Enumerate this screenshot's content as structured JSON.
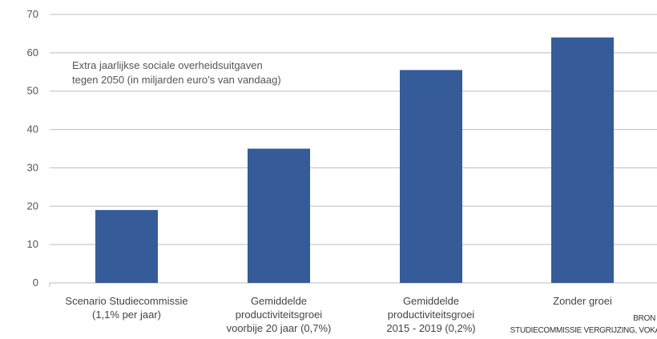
{
  "chart_data": {
    "type": "bar",
    "categories": [
      [
        "Scenario Studiecommissie",
        "(1,1% per jaar)"
      ],
      [
        "Gemiddelde",
        "productiviteitsgroei",
        "voorbije 20 jaar (0,7%)"
      ],
      [
        "Gemiddelde",
        "productiviteitsgroei",
        "2015 - 2019 (0,2%)"
      ],
      [
        "Zonder groei"
      ]
    ],
    "values": [
      19,
      35,
      55.5,
      64
    ],
    "ylim": [
      0,
      70
    ],
    "yticks": [
      0,
      10,
      20,
      30,
      40,
      50,
      60,
      70
    ],
    "grid": true,
    "bar_color": "#355c99",
    "grid_color": "#bdbdbd",
    "annotation": [
      "Extra jaarlijkse sociale overheidsuitgaven",
      "tegen 2050 (in miljarden euro’s van vandaag)"
    ]
  },
  "source": {
    "line1": "BRON",
    "line2": "STUDIECOMMISSIE VERGRIJZING, VOKA"
  }
}
